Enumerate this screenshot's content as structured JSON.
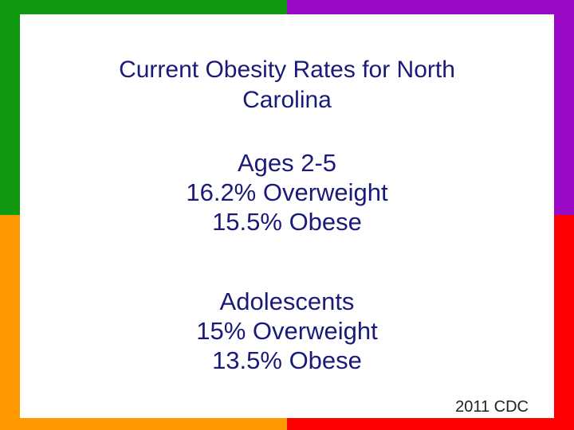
{
  "colors": {
    "top_left": "#0f9a11",
    "top_right": "#9b09c6",
    "bottom_left": "#ff9900",
    "bottom_right": "#ff0000",
    "panel": "#ffffff",
    "text": "#1a1a7a"
  },
  "slide": {
    "title_line1": "Current Obesity Rates for North",
    "title_line2": "Carolina",
    "groups": [
      {
        "heading": "Ages 2-5",
        "overweight": "16.2% Overweight",
        "obese": "15.5% Obese"
      },
      {
        "heading": "Adolescents",
        "overweight": "15% Overweight",
        "obese": "13.5% Obese"
      }
    ],
    "source": "2011 CDC"
  }
}
